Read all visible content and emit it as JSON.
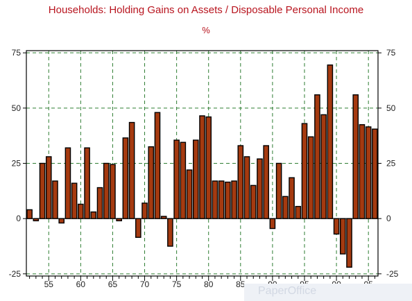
{
  "title": "Households: Holding Gains on Assets / Disposable Personal Income",
  "unit": "%",
  "watermark": "PaperOffice",
  "colors": {
    "title": "#b8141e",
    "bar_fill": "#a53a10",
    "bar_stroke": "#000000",
    "grid": "#2e7d32"
  },
  "chart_data": {
    "type": "bar",
    "x": [
      1952,
      1953,
      1954,
      1955,
      1956,
      1957,
      1958,
      1959,
      1960,
      1961,
      1962,
      1963,
      1964,
      1965,
      1966,
      1967,
      1968,
      1969,
      1970,
      1971,
      1972,
      1973,
      1974,
      1975,
      1976,
      1977,
      1978,
      1979,
      1980,
      1981,
      1982,
      1983,
      1984,
      1985,
      1986,
      1987,
      1988,
      1989,
      1990,
      1991,
      1992,
      1993,
      1994,
      1995,
      1996,
      1997,
      1998,
      1999,
      2000,
      2001,
      2002,
      2003,
      2004,
      2005,
      2006
    ],
    "values": [
      4,
      -1,
      25,
      28,
      17,
      -2,
      32,
      16,
      6.5,
      32,
      3,
      14,
      25,
      24.5,
      -1,
      36.5,
      43.5,
      -8.5,
      7,
      32.5,
      48,
      1,
      -12.5,
      35.5,
      34.5,
      22,
      35.5,
      46.5,
      46,
      17,
      17,
      16.5,
      17,
      33,
      28,
      15,
      27,
      33,
      -4.5,
      25,
      10,
      18.5,
      5.5,
      43,
      37,
      56,
      47,
      69.5,
      -7,
      -16,
      -22,
      56,
      42.5,
      41.5,
      40.5
    ],
    "x_ticks": [
      55,
      60,
      65,
      70,
      75,
      80,
      85,
      90,
      95,
      "00",
      "05"
    ],
    "x_tick_years": [
      1955,
      1960,
      1965,
      1970,
      1975,
      1980,
      1985,
      1990,
      1995,
      2000,
      2005
    ],
    "y_ticks": [
      75,
      50,
      25,
      0,
      -25
    ],
    "ylim": [
      -26,
      76
    ],
    "xlim": [
      1951.5,
      2006.5
    ],
    "grid": true,
    "grid_style": "dashed",
    "secondary_y_axis": true
  }
}
